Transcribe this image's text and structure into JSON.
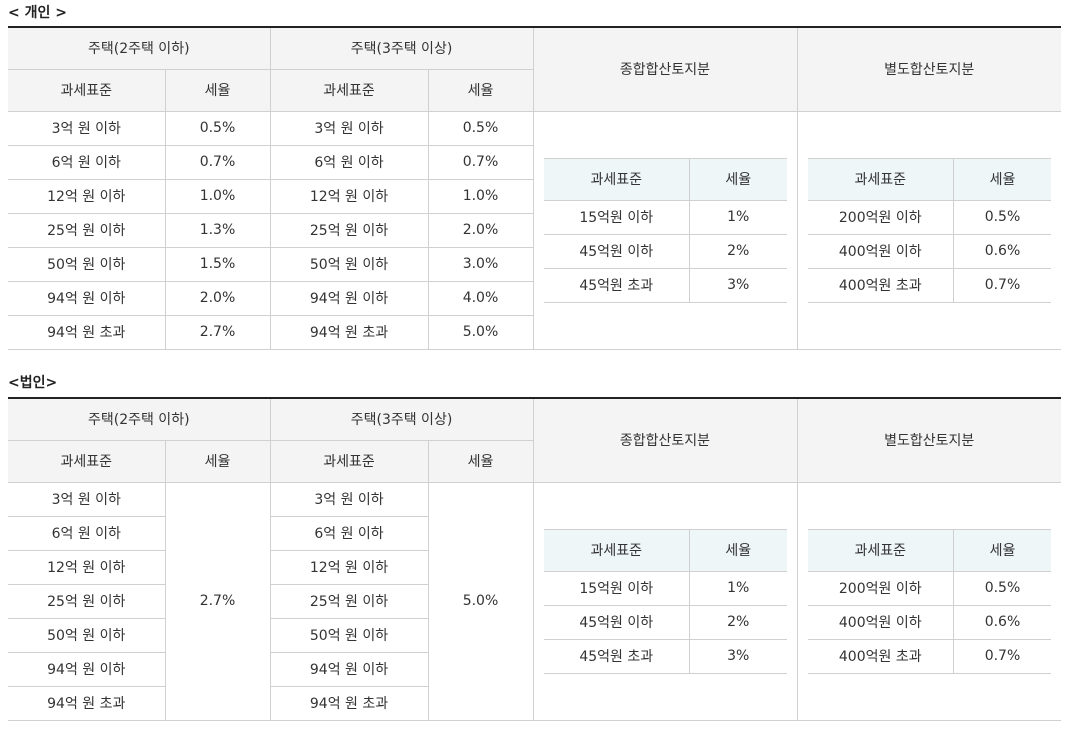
{
  "individual": {
    "title": "< 개인 >",
    "header": {
      "house2": "주택(2주택 이하)",
      "house3": "주택(3주택 이상)",
      "general_land": "종합합산토지분",
      "separate_land": "별도합산토지분",
      "tax_base": "과세표준",
      "rate": "세율"
    },
    "house_rows": [
      {
        "base2": "3억 원 이하",
        "rate2": "0.5%",
        "base3": "3억 원 이하",
        "rate3": "0.5%"
      },
      {
        "base2": "6억 원 이하",
        "rate2": "0.7%",
        "base3": "6억 원 이하",
        "rate3": "0.7%"
      },
      {
        "base2": "12억 원 이하",
        "rate2": "1.0%",
        "base3": "12억 원 이하",
        "rate3": "1.0%"
      },
      {
        "base2": "25억 원 이하",
        "rate2": "1.3%",
        "base3": "25억 원 이하",
        "rate3": "2.0%"
      },
      {
        "base2": "50억 원 이하",
        "rate2": "1.5%",
        "base3": "50억 원 이하",
        "rate3": "3.0%"
      },
      {
        "base2": "94억 원 이하",
        "rate2": "2.0%",
        "base3": "94억 원 이하",
        "rate3": "4.0%"
      },
      {
        "base2": "94억 원 초과",
        "rate2": "2.7%",
        "base3": "94억 원 초과",
        "rate3": "5.0%"
      }
    ],
    "general": [
      {
        "base": "15억원 이하",
        "rate": "1%"
      },
      {
        "base": "45억원 이하",
        "rate": "2%"
      },
      {
        "base": "45억원 초과",
        "rate": "3%"
      }
    ],
    "separate": [
      {
        "base": "200억원 이하",
        "rate": "0.5%"
      },
      {
        "base": "400억원 이하",
        "rate": "0.6%"
      },
      {
        "base": "400억원 초과",
        "rate": "0.7%"
      }
    ]
  },
  "corporate": {
    "title": "<법인>",
    "header": {
      "house2": "주택(2주택 이하)",
      "house3": "주택(3주택 이상)",
      "general_land": "종합합산토지분",
      "separate_land": "별도합산토지분",
      "tax_base": "과세표준",
      "rate": "세율"
    },
    "house2_bases": [
      "3억 원 이하",
      "6억 원 이하",
      "12억 원 이하",
      "25억 원 이하",
      "50억 원 이하",
      "94억 원 이하",
      "94억 원 초과"
    ],
    "house3_bases": [
      "3억 원 이하",
      "6억 원 이하",
      "12억 원 이하",
      "25억 원 이하",
      "50억 원 이하",
      "94억 원 이하",
      "94억 원 초과"
    ],
    "rate2": "2.7%",
    "rate3": "5.0%",
    "general": [
      {
        "base": "15억원 이하",
        "rate": "1%"
      },
      {
        "base": "45억원 이하",
        "rate": "2%"
      },
      {
        "base": "45억원 초과",
        "rate": "3%"
      }
    ],
    "separate": [
      {
        "base": "200억원 이하",
        "rate": "0.5%"
      },
      {
        "base": "400억원 이하",
        "rate": "0.6%"
      },
      {
        "base": "400억원 초과",
        "rate": "0.7%"
      }
    ]
  }
}
